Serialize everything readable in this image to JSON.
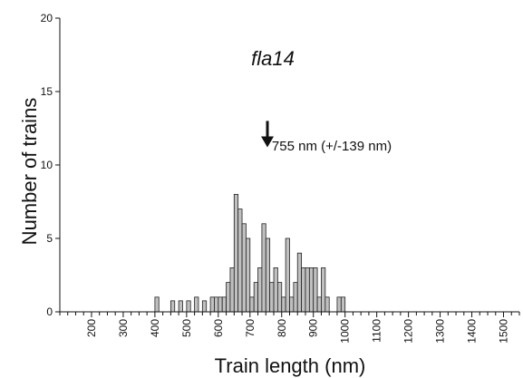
{
  "chart_data": {
    "type": "bar",
    "title": "fla14",
    "xlabel": "Train length (nm)",
    "ylabel": "Number of trains",
    "xlim": [
      100,
      1550
    ],
    "ylim": [
      0,
      20
    ],
    "grid": false,
    "x_major_ticks": [
      200,
      300,
      400,
      500,
      600,
      700,
      800,
      900,
      1000,
      1100,
      1200,
      1300,
      1400,
      1500
    ],
    "y_ticks": [
      0,
      5,
      10,
      15,
      20
    ],
    "bin_width": 12.5,
    "bar_color": "#c0c0c0",
    "bar_edge_color": "#222222",
    "bins": [
      {
        "x": 400,
        "value": 1
      },
      {
        "x": 450,
        "value": 0.75
      },
      {
        "x": 475,
        "value": 0.75
      },
      {
        "x": 500,
        "value": 0.75
      },
      {
        "x": 525,
        "value": 1
      },
      {
        "x": 550,
        "value": 0.75
      },
      {
        "x": 575,
        "value": 1
      },
      {
        "x": 587.5,
        "value": 1
      },
      {
        "x": 600,
        "value": 1
      },
      {
        "x": 612.5,
        "value": 1
      },
      {
        "x": 625,
        "value": 2
      },
      {
        "x": 637.5,
        "value": 3
      },
      {
        "x": 650,
        "value": 8
      },
      {
        "x": 662.5,
        "value": 7
      },
      {
        "x": 675,
        "value": 6
      },
      {
        "x": 687.5,
        "value": 5
      },
      {
        "x": 700,
        "value": 1
      },
      {
        "x": 712.5,
        "value": 2
      },
      {
        "x": 725,
        "value": 3
      },
      {
        "x": 737.5,
        "value": 6
      },
      {
        "x": 750,
        "value": 5
      },
      {
        "x": 762.5,
        "value": 2
      },
      {
        "x": 775,
        "value": 3
      },
      {
        "x": 787.5,
        "value": 2
      },
      {
        "x": 800,
        "value": 1
      },
      {
        "x": 812.5,
        "value": 5
      },
      {
        "x": 825,
        "value": 1
      },
      {
        "x": 837.5,
        "value": 2
      },
      {
        "x": 850,
        "value": 4
      },
      {
        "x": 862.5,
        "value": 3
      },
      {
        "x": 875,
        "value": 3
      },
      {
        "x": 887.5,
        "value": 3
      },
      {
        "x": 900,
        "value": 3
      },
      {
        "x": 912.5,
        "value": 1
      },
      {
        "x": 925,
        "value": 3
      },
      {
        "x": 937.5,
        "value": 1
      },
      {
        "x": 975,
        "value": 1
      },
      {
        "x": 987.5,
        "value": 1
      }
    ],
    "annotation": {
      "text": "755 nm (+/-139 nm)",
      "arrow_x": 755,
      "arrow_y_tip": 11.2,
      "arrow_y_tail": 13.0
    }
  }
}
